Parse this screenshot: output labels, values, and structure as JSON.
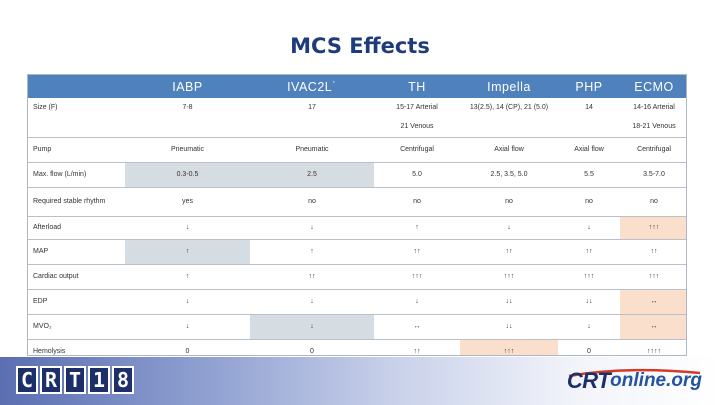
{
  "title": "MCS Effects",
  "columns": [
    "",
    "IABP",
    "IVAC2L˙",
    "TH",
    "Impella",
    "PHP",
    "ECMO"
  ],
  "rows": [
    {
      "label": "Size (F)",
      "cells": [
        "7-8",
        "17",
        "15-17 Arterial",
        "13(2.5), 14 (CP), 21 (5.0)",
        "14",
        "14-16 Arterial"
      ]
    },
    {
      "label": "",
      "cells": [
        "",
        "",
        "21 Venous",
        "",
        "",
        "18-21 Venous"
      ]
    },
    {
      "label": "Pump",
      "cells": [
        "Pneumatic",
        "Pneumatic",
        "Centrifugal",
        "Axial flow",
        "Axial flow",
        "Centrifugal"
      ]
    },
    {
      "label": "Max. flow (L/min)",
      "cells": [
        "0.3-0.5",
        "2.5",
        "5.0",
        "2.5, 3.5, 5.0",
        "5.5",
        "3.5-7.0"
      ]
    },
    {
      "label": "Required stable rhythm",
      "cells": [
        "yes",
        "no",
        "no",
        "no",
        "no",
        "no"
      ]
    },
    {
      "label": "Afterload",
      "cells": [
        "↓",
        "↓",
        "↑",
        "↓",
        "↓",
        "↑↑↑"
      ]
    },
    {
      "label": "MAP",
      "cells": [
        "↑",
        "↑",
        "↑↑",
        "↑↑",
        "↑↑",
        "↑↑"
      ]
    },
    {
      "label": "Cardiac output",
      "cells": [
        "↑",
        "↑↑",
        "↑↑↑",
        "↑↑↑",
        "↑↑↑",
        "↑↑↑"
      ]
    },
    {
      "label": "EDP",
      "cells": [
        "↓",
        "↓",
        "↓",
        "↓↓",
        "↓↓",
        "↔"
      ]
    },
    {
      "label": "MVO₂",
      "cells": [
        "↓",
        "↓",
        "↔",
        "↓↓",
        "↓",
        "↔"
      ]
    },
    {
      "label": "Hemolysis",
      "cells": [
        "0",
        "0",
        "↑↑",
        "↑↑↑",
        "0",
        "↑↑↑↑"
      ]
    }
  ],
  "highlights": {
    "gray": "#d5dde3",
    "peach": "#fadfcd",
    "header": "#4f81bd"
  },
  "footer": {
    "left_logo_letters": [
      "C",
      "R",
      "T",
      "1",
      "8"
    ],
    "right_logo_main": "CRT",
    "right_logo_rest": "online.org"
  }
}
